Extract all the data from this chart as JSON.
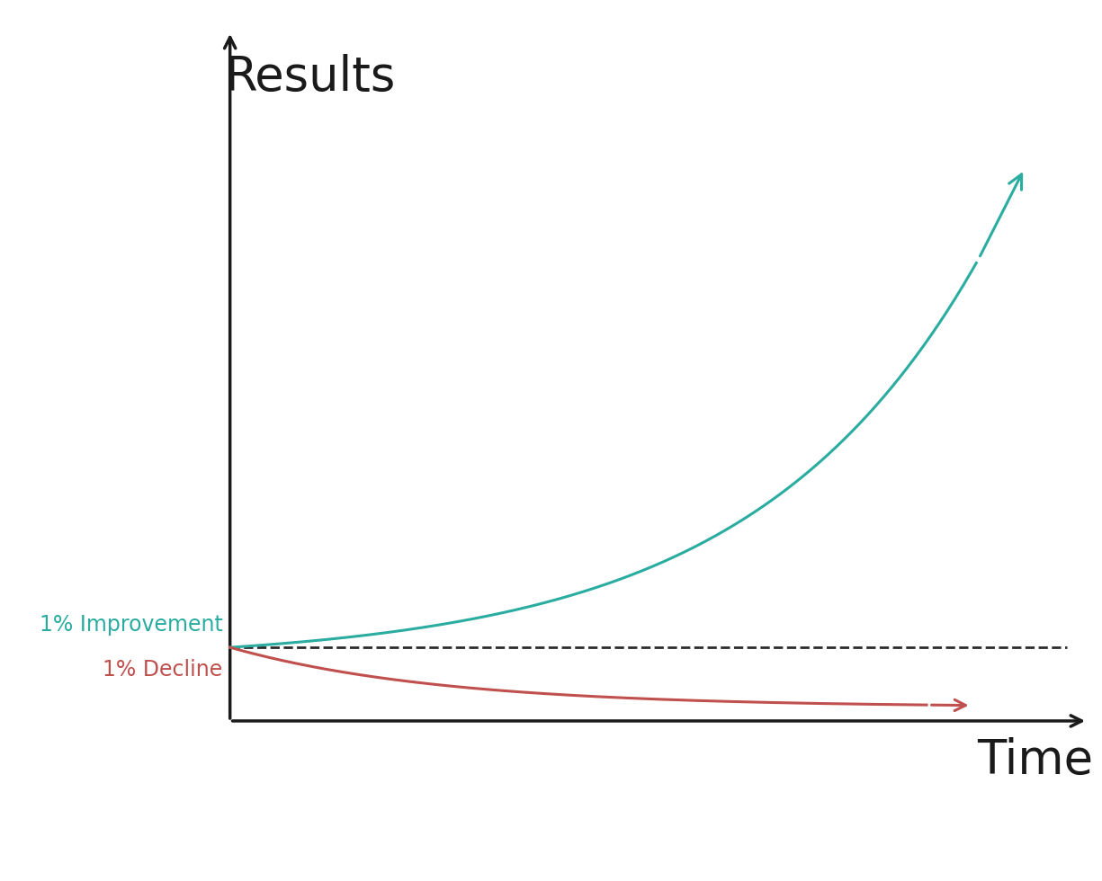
{
  "ylabel": "Results",
  "xlabel": "Time",
  "background_color": "#ffffff",
  "teal_color": "#2aada0",
  "red_color": "#c0504d",
  "dashed_color": "#2a2a2a",
  "axis_color": "#1a1a1a",
  "label_improvement": "1% Improvement",
  "label_decline": "1% Decline",
  "ylabel_fontsize": 38,
  "xlabel_fontsize": 38,
  "label_fontsize": 17,
  "xlim": [
    0,
    10
  ],
  "ylim": [
    -2.5,
    7.0
  ],
  "origin_x": 1.8,
  "origin_y": -0.8,
  "baseline_y": 0.0
}
